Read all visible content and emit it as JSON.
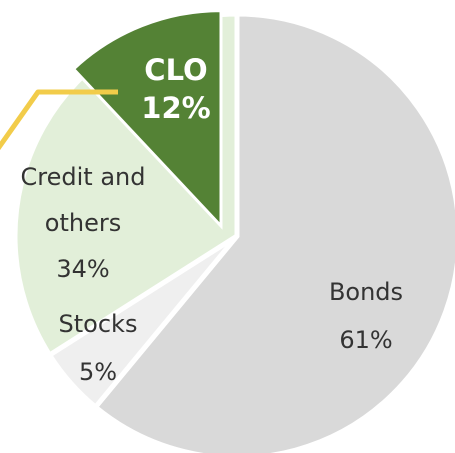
{
  "chart_data": {
    "type": "pie",
    "slices": [
      {
        "label_lines": [
          "Bonds",
          "61%"
        ],
        "value": 61,
        "color": "#d9d9d9",
        "text_color": "#333333"
      },
      {
        "label_lines": [
          "Stocks",
          "5%"
        ],
        "value": 5,
        "color": "#efefef",
        "text_color": "#333333"
      },
      {
        "label_lines": [
          "Credit and",
          "others",
          "34%"
        ],
        "value": 34,
        "color": "#e2efd9",
        "text_color": "#333333",
        "sub_slice": {
          "label_lines": [
            "CLO",
            "12%"
          ],
          "value": 12,
          "color": "#548235",
          "text_color": "#ffffff"
        }
      }
    ],
    "leader_line_color": "#f2cc4a"
  }
}
